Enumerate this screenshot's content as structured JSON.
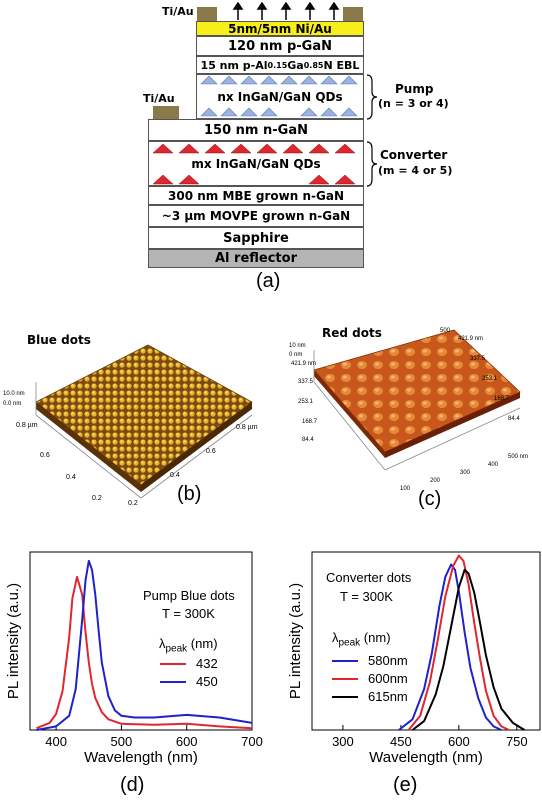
{
  "panel_a": {
    "contact_top": "Ti/Au",
    "contact_side": "Ti/Au",
    "layers": {
      "nial": "5nm/5nm  Ni/Au",
      "pgan": "120 nm  p-GaN",
      "ebl_pre": "15 nm  p-Al",
      "ebl_sub1": "0.15",
      "ebl_mid": "Ga",
      "ebl_sub2": "0.85",
      "ebl_post": "N  EBL",
      "pump_qd": "nx InGaN/GaN QDs",
      "ngan150": "150 nm  n-GaN",
      "conv_qd": "mx  InGaN/GaN QDs",
      "mbe": "300 nm MBE grown n-GaN",
      "movpe": "~3 µm MOVPE grown n-GaN",
      "sapphire": "Sapphire",
      "al": "Al   reflector"
    },
    "pump_label": "Pump",
    "pump_sub": "(n = 3 or 4)",
    "conv_label": "Converter",
    "conv_sub": "(m = 4 or 5)",
    "caption": "(a)"
  },
  "panel_b": {
    "title": "Blue dots",
    "z_top": "10.0 nm",
    "z_bot": "0.0 nm",
    "y_ticks": [
      "0.8 µm",
      "0.6",
      "0.4",
      "0.2"
    ],
    "x_ticks": [
      "0.2",
      "0.4",
      "0.6",
      "0.8 µm"
    ],
    "caption": "(b)"
  },
  "panel_c": {
    "title": "Red dots",
    "z_top": "10 nm",
    "z_bot": "0 nm",
    "top_ticks": [
      "500",
      "421.9 nm",
      "337.5",
      "253.1",
      "168.7",
      "84.4"
    ],
    "left_ticks": [
      "421.9 nm",
      "337.5",
      "253.1",
      "168.7",
      "84.4"
    ],
    "x_ticks": [
      "100",
      "200",
      "300",
      "400",
      "500 nm"
    ],
    "caption": "(c)"
  },
  "chart_data": [
    {
      "type": "line",
      "panel": "d",
      "ylabel": "PL intensity (a.u.)",
      "xlabel": "Wavelength (nm)",
      "xlim": [
        360,
        700
      ],
      "xticks": [
        400,
        500,
        600,
        700
      ],
      "annotation_1": "Pump Blue dots",
      "annotation_2": "T = 300K",
      "legend_title_symbol": "λ",
      "legend_title_sub": "peak",
      "legend_title_unit": " (nm)",
      "series": [
        {
          "name": "432",
          "color": "#e0262e",
          "x": [
            370,
            390,
            400,
            410,
            420,
            425,
            432,
            440,
            445,
            450,
            455,
            460,
            470,
            480,
            500,
            550,
            600,
            650,
            700
          ],
          "y": [
            0.01,
            0.04,
            0.09,
            0.22,
            0.52,
            0.74,
            0.86,
            0.76,
            0.55,
            0.38,
            0.26,
            0.18,
            0.1,
            0.06,
            0.035,
            0.03,
            0.035,
            0.02,
            0.01
          ]
        },
        {
          "name": "450",
          "color": "#1e22c8",
          "x": [
            370,
            400,
            420,
            430,
            440,
            445,
            450,
            455,
            460,
            465,
            470,
            480,
            490,
            500,
            520,
            550,
            600,
            650,
            700
          ],
          "y": [
            0.0,
            0.02,
            0.08,
            0.23,
            0.62,
            0.84,
            0.95,
            0.9,
            0.76,
            0.56,
            0.38,
            0.19,
            0.11,
            0.08,
            0.07,
            0.07,
            0.085,
            0.07,
            0.04
          ]
        }
      ],
      "caption": "(d)"
    },
    {
      "type": "line",
      "panel": "e",
      "ylabel": "PL intensity (a.u.)",
      "xlabel": "Wavelength (nm)",
      "xlim": [
        220,
        810
      ],
      "xticks": [
        300,
        450,
        600,
        750
      ],
      "annotation_1": "Converter dots",
      "annotation_2": "T = 300K",
      "legend_title_symbol": "λ",
      "legend_title_sub": "peak",
      "legend_title_unit": " (nm)",
      "series": [
        {
          "name": "580nm",
          "color": "#1e22c8",
          "x": [
            445,
            480,
            510,
            530,
            550,
            565,
            580,
            590,
            600,
            615,
            630,
            650,
            670,
            690,
            710
          ],
          "y": [
            0.0,
            0.06,
            0.23,
            0.43,
            0.7,
            0.86,
            0.93,
            0.9,
            0.78,
            0.55,
            0.35,
            0.18,
            0.07,
            0.02,
            0.0
          ]
        },
        {
          "name": "600nm",
          "color": "#e0262e",
          "x": [
            470,
            500,
            525,
            545,
            565,
            585,
            600,
            612,
            625,
            640,
            655,
            670,
            690,
            710,
            730
          ],
          "y": [
            0.0,
            0.08,
            0.27,
            0.5,
            0.75,
            0.92,
            0.98,
            0.95,
            0.82,
            0.6,
            0.4,
            0.22,
            0.08,
            0.02,
            0.0
          ]
        },
        {
          "name": "615nm",
          "color": "#000000",
          "x": [
            480,
            510,
            540,
            560,
            580,
            600,
            615,
            625,
            640,
            655,
            670,
            690,
            710,
            740,
            770
          ],
          "y": [
            0.0,
            0.05,
            0.2,
            0.36,
            0.58,
            0.8,
            0.9,
            0.88,
            0.77,
            0.6,
            0.42,
            0.24,
            0.12,
            0.04,
            0.0
          ]
        }
      ],
      "caption": "(e)"
    }
  ]
}
